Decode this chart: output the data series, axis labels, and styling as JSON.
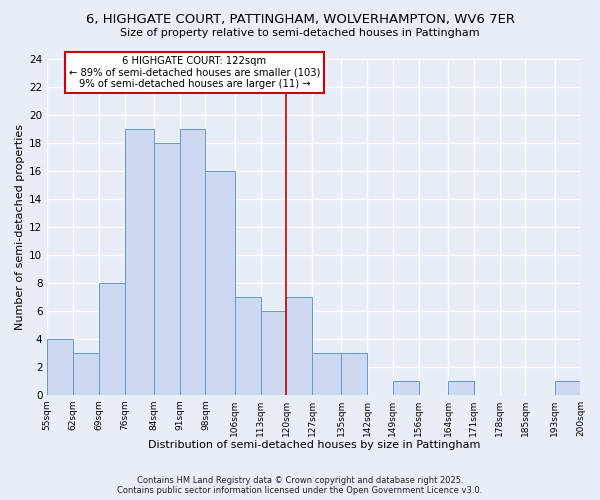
{
  "title_line1": "6, HIGHGATE COURT, PATTINGHAM, WOLVERHAMPTON, WV6 7ER",
  "title_line2": "Size of property relative to semi-detached houses in Pattingham",
  "xlabel": "Distribution of semi-detached houses by size in Pattingham",
  "ylabel": "Number of semi-detached properties",
  "bins": [
    55,
    62,
    69,
    76,
    84,
    91,
    98,
    106,
    113,
    120,
    127,
    135,
    142,
    149,
    156,
    164,
    171,
    178,
    185,
    193,
    200
  ],
  "counts": [
    4,
    3,
    8,
    19,
    18,
    19,
    16,
    7,
    6,
    7,
    3,
    3,
    0,
    1,
    0,
    1,
    0,
    0,
    0,
    1
  ],
  "bar_color": "#ccd9f0",
  "bar_edge_color": "#6699cc",
  "reference_line_x": 120,
  "annotation_title": "6 HIGHGATE COURT: 122sqm",
  "annotation_line1": "← 89% of semi-detached houses are smaller (103)",
  "annotation_line2": "9% of semi-detached houses are larger (11) →",
  "annotation_box_color": "#ffffff",
  "annotation_box_edge": "#cc0000",
  "reference_line_color": "#cc0000",
  "ylim": [
    0,
    24
  ],
  "yticks": [
    0,
    2,
    4,
    6,
    8,
    10,
    12,
    14,
    16,
    18,
    20,
    22,
    24
  ],
  "footnote_line1": "Contains HM Land Registry data © Crown copyright and database right 2025.",
  "footnote_line2": "Contains public sector information licensed under the Open Government Licence v3.0.",
  "bg_color": "#e8eef8",
  "plot_bg_color": "#e8eef8",
  "grid_color": "#ffffff"
}
